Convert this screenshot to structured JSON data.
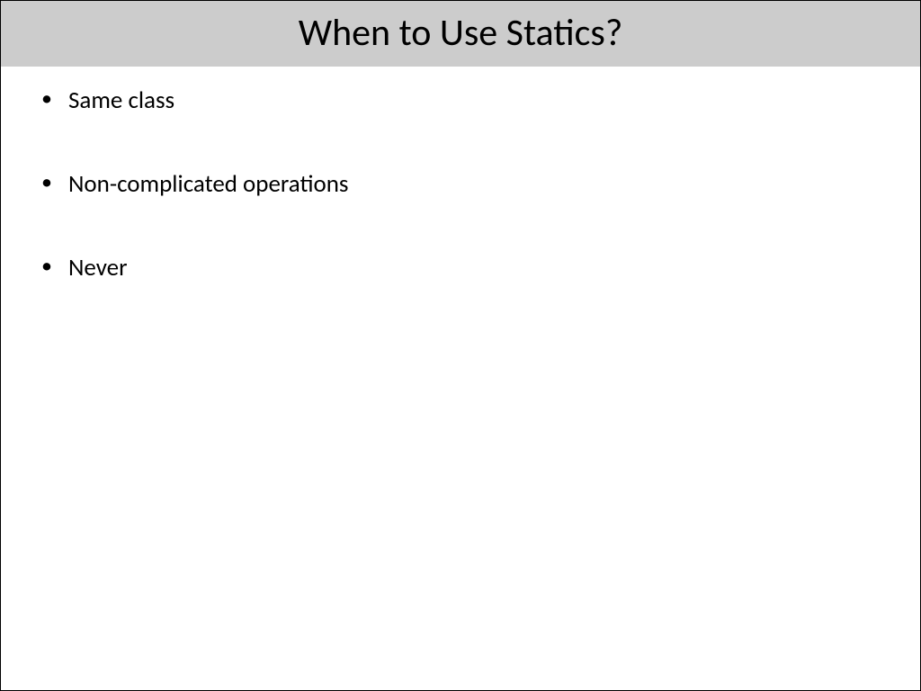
{
  "slide": {
    "title": "When to Use Statics?",
    "bullets": [
      "Same class",
      "Non-complicated operations",
      "Never"
    ],
    "style": {
      "title_bg_color": "#cccccc",
      "title_text_color": "#000000",
      "title_fontsize": 42,
      "body_bg_color": "#ffffff",
      "bullet_text_color": "#000000",
      "bullet_fontsize": 27,
      "border_color": "#000000",
      "font_family": "Calibri"
    }
  }
}
